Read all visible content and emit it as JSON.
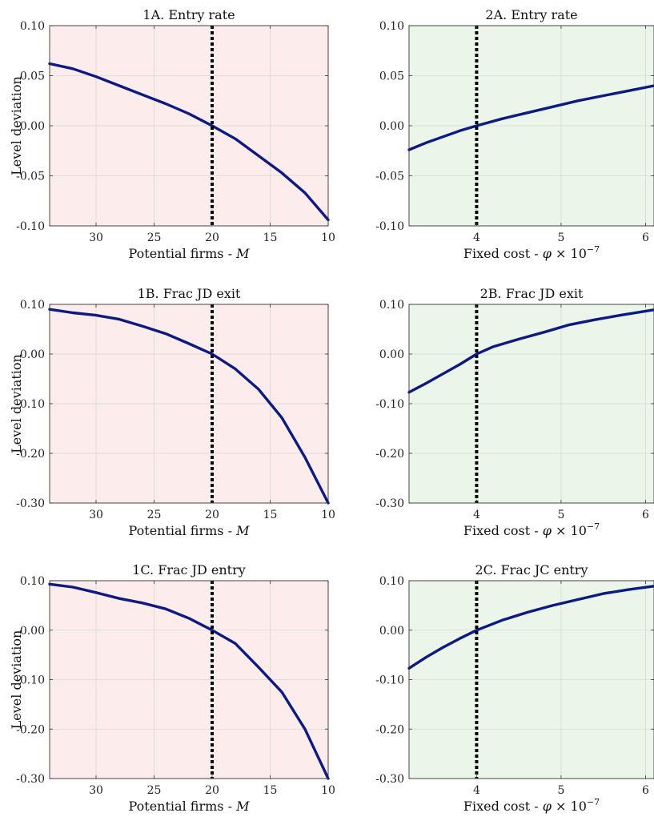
{
  "figure": {
    "colors": {
      "left_panel_bg": "#fcecec",
      "right_panel_bg": "#ebf5ea",
      "line": "#0d1a82",
      "reference_line": "#000000"
    },
    "y_axis_label": "Level deviation"
  },
  "chart_data": [
    {
      "id": "1A",
      "type": "line",
      "title": "1A. Entry rate",
      "xlabel": "Potential firms - M",
      "xlabel_main": "Potential firms - ",
      "xlabel_var": "M",
      "ylabel": "Level deviation",
      "x_reversed": true,
      "xlim": [
        34,
        10
      ],
      "ylim": [
        -0.1,
        0.1
      ],
      "xticks": [
        30,
        25,
        20,
        15,
        10
      ],
      "xtick_labels": [
        "30",
        "25",
        "20",
        "15",
        "10"
      ],
      "yticks": [
        -0.1,
        -0.05,
        0,
        0.05,
        0.1
      ],
      "ytick_labels": [
        "-0.10",
        "-0.05",
        "0.00",
        "0.05",
        "0.10"
      ],
      "reference_x": 20,
      "grid": true,
      "x": [
        34,
        32,
        30,
        28,
        26,
        24,
        22,
        20,
        18,
        16,
        14,
        12,
        10
      ],
      "y": [
        0.062,
        0.057,
        0.049,
        0.04,
        0.031,
        0.022,
        0.012,
        0.0,
        -0.013,
        -0.03,
        -0.047,
        -0.067,
        -0.094
      ]
    },
    {
      "id": "2A",
      "type": "line",
      "title": "2A. Entry rate",
      "xlabel": "Fixed cost - φ × 10^-7",
      "xlabel_main": "Fixed cost - ",
      "xlabel_var": "φ",
      "xlabel_times": " × 10",
      "xlabel_exp": "−7",
      "ylabel": "",
      "x_reversed": false,
      "xlim": [
        3.2,
        6.1
      ],
      "ylim": [
        -0.1,
        0.1
      ],
      "xticks": [
        4,
        5,
        6
      ],
      "xtick_labels": [
        "4",
        "5",
        "6"
      ],
      "yticks": [
        -0.1,
        -0.05,
        0,
        0.05,
        0.1
      ],
      "ytick_labels": [
        "-0.10",
        "-0.05",
        "0.00",
        "0.05",
        "0.10"
      ],
      "reference_x": 4,
      "grid": true,
      "x": [
        3.2,
        3.4,
        3.6,
        3.8,
        4.0,
        4.3,
        4.6,
        4.9,
        5.2,
        5.5,
        5.8,
        6.1
      ],
      "y": [
        -0.024,
        -0.017,
        -0.011,
        -0.005,
        0.0,
        0.007,
        0.013,
        0.019,
        0.025,
        0.03,
        0.035,
        0.04
      ]
    },
    {
      "id": "1B",
      "type": "line",
      "title": "1B. Frac JD exit",
      "xlabel": "Potential firms - M",
      "xlabel_main": "Potential firms - ",
      "xlabel_var": "M",
      "ylabel": "Level deviation",
      "x_reversed": true,
      "xlim": [
        34,
        10
      ],
      "ylim": [
        -0.3,
        0.1
      ],
      "xticks": [
        30,
        25,
        20,
        15,
        10
      ],
      "xtick_labels": [
        "30",
        "25",
        "20",
        "15",
        "10"
      ],
      "yticks": [
        -0.3,
        -0.2,
        -0.1,
        0,
        0.1
      ],
      "ytick_labels": [
        "-0.30",
        "-0.20",
        "-0.10",
        "0.00",
        "0.10"
      ],
      "reference_x": 20,
      "grid": true,
      "x": [
        34,
        32,
        30,
        28,
        26,
        24,
        22,
        20,
        18,
        16,
        14,
        12,
        10
      ],
      "y": [
        0.09,
        0.083,
        0.078,
        0.07,
        0.056,
        0.041,
        0.021,
        0.0,
        -0.03,
        -0.071,
        -0.128,
        -0.208,
        -0.3
      ]
    },
    {
      "id": "2B",
      "type": "line",
      "title": "2B. Frac JD exit",
      "xlabel": "Fixed cost - φ × 10^-7",
      "xlabel_main": "Fixed cost - ",
      "xlabel_var": "φ",
      "xlabel_times": " × 10",
      "xlabel_exp": "−7",
      "ylabel": "",
      "x_reversed": false,
      "xlim": [
        3.2,
        6.1
      ],
      "ylim": [
        -0.3,
        0.1
      ],
      "xticks": [
        4,
        5,
        6
      ],
      "xtick_labels": [
        "4",
        "5",
        "6"
      ],
      "yticks": [
        -0.3,
        -0.2,
        -0.1,
        0,
        0.1
      ],
      "ytick_labels": [
        "-0.30",
        "-0.20",
        "-0.10",
        "0.00",
        "0.10"
      ],
      "reference_x": 4,
      "grid": true,
      "x": [
        3.2,
        3.4,
        3.6,
        3.8,
        4.0,
        4.2,
        4.5,
        4.8,
        5.1,
        5.4,
        5.7,
        6.1
      ],
      "y": [
        -0.077,
        -0.059,
        -0.04,
        -0.021,
        0.0,
        0.015,
        0.03,
        0.044,
        0.059,
        0.069,
        0.078,
        0.089
      ]
    },
    {
      "id": "1C",
      "type": "line",
      "title": "1C. Frac JD entry",
      "xlabel": "Potential firms - M",
      "xlabel_main": "Potential firms - ",
      "xlabel_var": "M",
      "ylabel": "Level deviation",
      "x_reversed": true,
      "xlim": [
        34,
        10
      ],
      "ylim": [
        -0.3,
        0.1
      ],
      "xticks": [
        30,
        25,
        20,
        15,
        10
      ],
      "xtick_labels": [
        "30",
        "25",
        "20",
        "15",
        "10"
      ],
      "yticks": [
        -0.3,
        -0.2,
        -0.1,
        0,
        0.1
      ],
      "ytick_labels": [
        "-0.30",
        "-0.20",
        "-0.10",
        "0.00",
        "0.10"
      ],
      "reference_x": 20,
      "grid": true,
      "x": [
        34,
        32,
        30,
        28,
        26,
        24,
        22,
        20,
        18,
        16,
        14,
        12,
        10
      ],
      "y": [
        0.093,
        0.087,
        0.076,
        0.064,
        0.055,
        0.043,
        0.024,
        0.0,
        -0.027,
        -0.075,
        -0.125,
        -0.2,
        -0.3
      ]
    },
    {
      "id": "2C",
      "type": "line",
      "title": "2C. Frac JC entry",
      "xlabel": "Fixed cost - φ × 10^-7",
      "xlabel_main": "Fixed cost - ",
      "xlabel_var": "φ",
      "xlabel_times": " × 10",
      "xlabel_exp": "−7",
      "ylabel": "",
      "x_reversed": false,
      "xlim": [
        3.2,
        6.1
      ],
      "ylim": [
        -0.3,
        0.1
      ],
      "xticks": [
        4,
        5,
        6
      ],
      "xtick_labels": [
        "4",
        "5",
        "6"
      ],
      "yticks": [
        -0.3,
        -0.2,
        -0.1,
        0,
        0.1
      ],
      "ytick_labels": [
        "-0.30",
        "-0.20",
        "-0.10",
        "0.00",
        "0.10"
      ],
      "reference_x": 4,
      "grid": true,
      "x": [
        3.2,
        3.4,
        3.6,
        3.8,
        4.0,
        4.3,
        4.6,
        4.9,
        5.2,
        5.5,
        5.8,
        6.1
      ],
      "y": [
        -0.077,
        -0.055,
        -0.035,
        -0.017,
        0.0,
        0.02,
        0.036,
        0.05,
        0.062,
        0.074,
        0.082,
        0.089
      ]
    }
  ]
}
